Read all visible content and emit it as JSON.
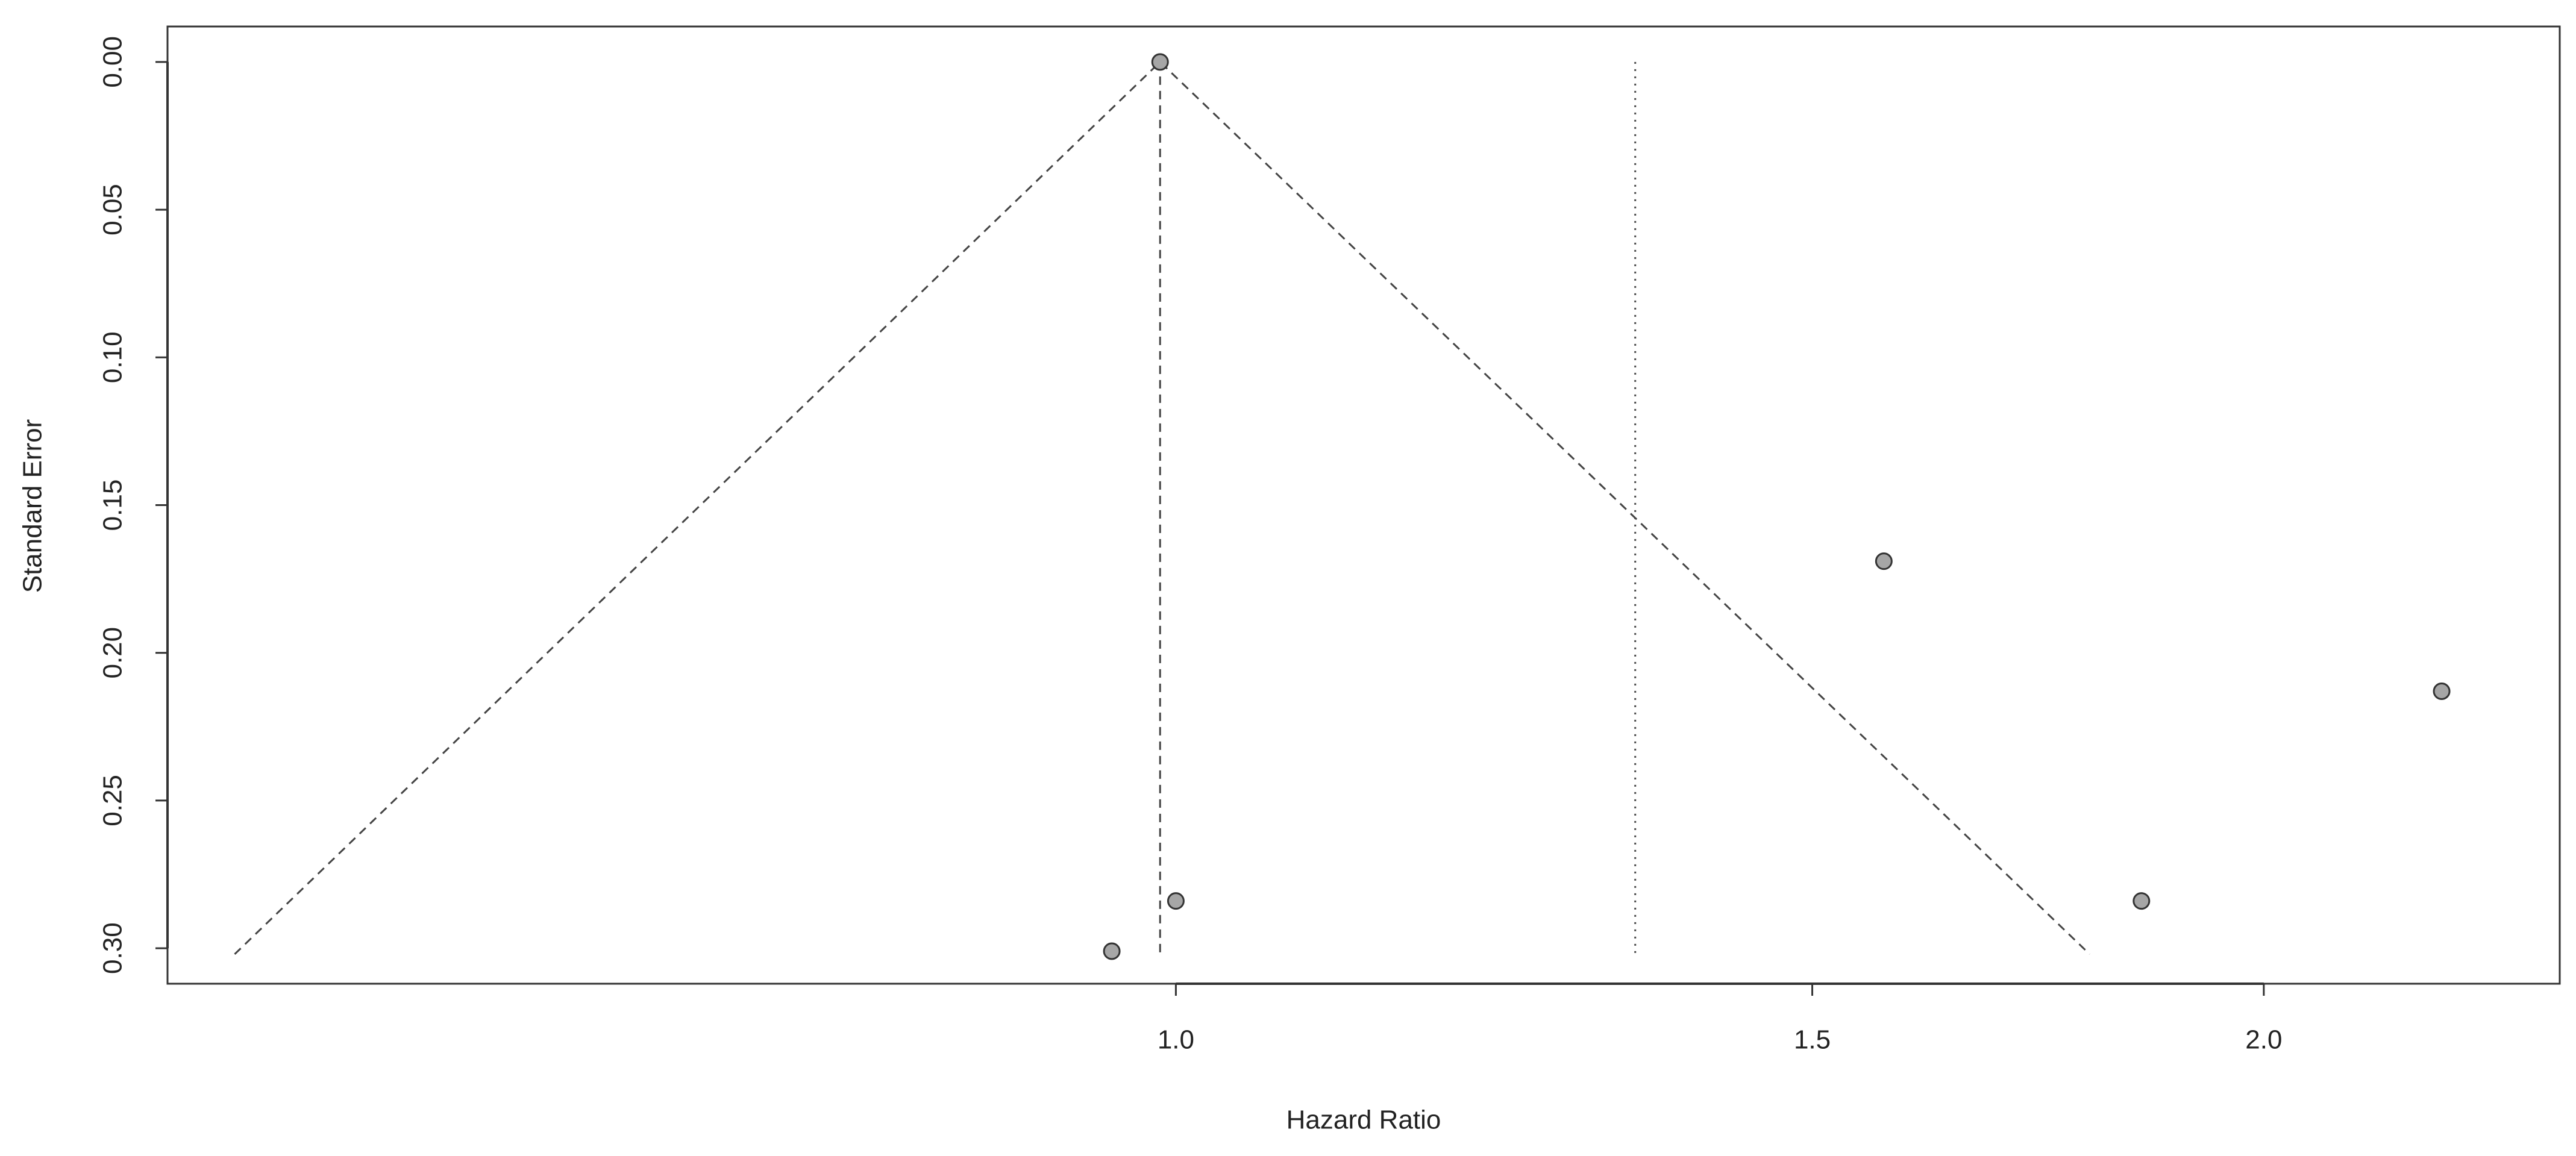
{
  "chart_data": {
    "type": "scatter",
    "xlabel": "Hazard Ratio",
    "ylabel": "Standard Error",
    "x": [
      0.99,
      1.57,
      2.24,
      1.85,
      1.0,
      0.96
    ],
    "values": [
      0,
      0.169,
      0.213,
      0.284,
      0.284,
      0.301
    ],
    "point_color": "#a6a6a6",
    "xlim": [
      0.526,
      2.415
    ],
    "ylim": [
      -0.012,
      0.312
    ],
    "x_log": true,
    "y_reversed": true,
    "xticks": [
      {
        "value": 1,
        "label": "1.0"
      },
      1.5,
      {
        "value": 2,
        "label": "2.0"
      }
    ],
    "yticks": [
      {
        "value": 0,
        "label": "0.00"
      },
      {
        "value": 0.05,
        "label": "0.05"
      },
      {
        "value": 0.1,
        "label": "0.10"
      },
      {
        "value": 0.15,
        "label": "0.15"
      },
      {
        "value": 0.2,
        "label": "0.20"
      },
      {
        "value": 0.25,
        "label": "0.25"
      },
      {
        "value": 0.3,
        "label": "0.30"
      }
    ],
    "funnel": {
      "x": [
        0.549,
        0.99,
        1.79
      ],
      "values": [
        0.302,
        0,
        0.302
      ]
    },
    "reference_lines": [
      {
        "x": 0.99,
        "values": [
          0,
          0.302
        ],
        "style": "dashed"
      },
      {
        "x": 1.34,
        "values": [
          0,
          0.302
        ],
        "style": "dotted"
      }
    ]
  }
}
